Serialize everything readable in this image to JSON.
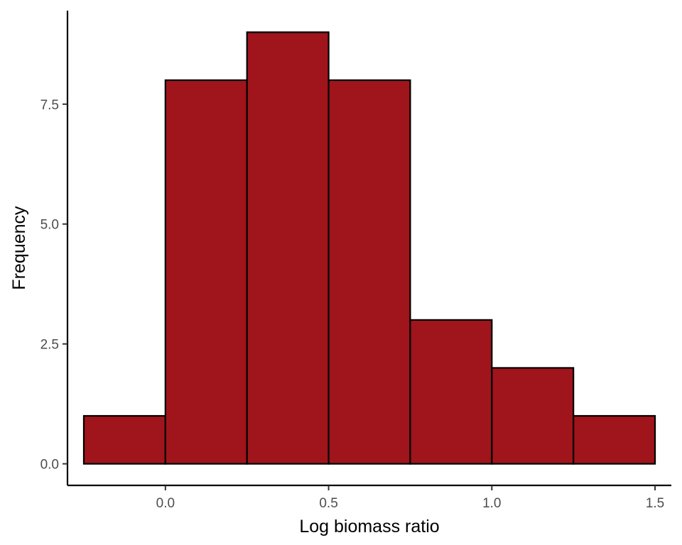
{
  "chart_data": {
    "type": "bar",
    "subtype": "histogram",
    "title": "",
    "xlabel": "Log biomass ratio",
    "ylabel": "Frequency",
    "bins": [
      {
        "x0": -0.25,
        "x1": 0.0,
        "count": 1
      },
      {
        "x0": 0.0,
        "x1": 0.25,
        "count": 8
      },
      {
        "x0": 0.25,
        "x1": 0.5,
        "count": 9
      },
      {
        "x0": 0.5,
        "x1": 0.75,
        "count": 8
      },
      {
        "x0": 0.75,
        "x1": 1.0,
        "count": 3
      },
      {
        "x0": 1.0,
        "x1": 1.25,
        "count": 2
      },
      {
        "x0": 1.25,
        "x1": 1.5,
        "count": 1
      }
    ],
    "xlim": [
      -0.3,
      1.55
    ],
    "ylim": [
      -0.45,
      9.45
    ],
    "x_ticks": [
      0.0,
      0.5,
      1.0,
      1.5
    ],
    "x_tick_labels": [
      "0.0",
      "0.5",
      "1.0",
      "1.5"
    ],
    "y_ticks": [
      0.0,
      2.5,
      5.0,
      7.5
    ],
    "y_tick_labels": [
      "0.0",
      "2.5",
      "5.0",
      "7.5"
    ],
    "grid": false,
    "legend": "none",
    "colors": {
      "bar_fill": "#A0141C",
      "bar_stroke": "#000000",
      "axis": "#000000",
      "tick_text": "#4d4d4d"
    }
  }
}
